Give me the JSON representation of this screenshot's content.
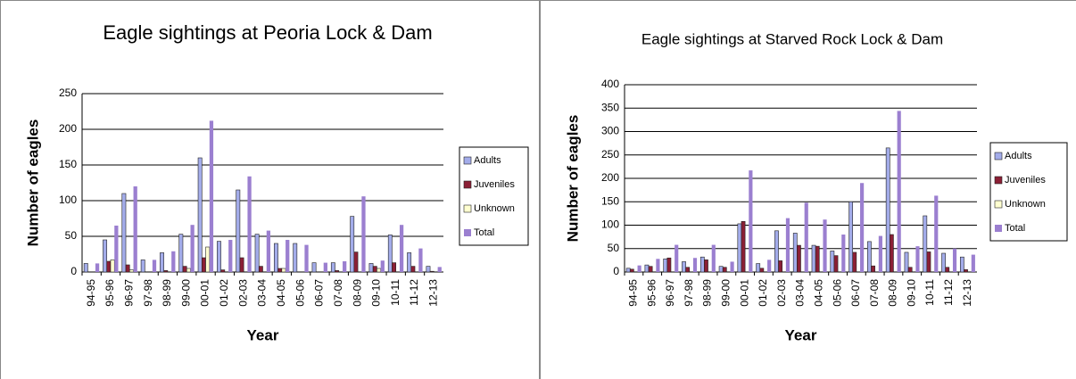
{
  "chart_data": [
    {
      "type": "bar",
      "title": "Eagle sightings at Peoria Lock & Dam",
      "x_label": "Year",
      "y_label": "Number of eagles",
      "categories": [
        "94-95",
        "95-96",
        "96-97",
        "97-98",
        "98-99",
        "99-00",
        "00-01",
        "01-02",
        "02-03",
        "03-04",
        "04-05",
        "05-06",
        "06-07",
        "07-08",
        "08-09",
        "09-10",
        "10-11",
        "11-12",
        "12-13"
      ],
      "series": [
        {
          "name": "Adults",
          "color": "#a3acea",
          "values": [
            12,
            45,
            110,
            17,
            27,
            53,
            160,
            43,
            115,
            53,
            40,
            40,
            13,
            13,
            78,
            12,
            52,
            27,
            8
          ]
        },
        {
          "name": "Juveniles",
          "color": "#8b1f35",
          "values": [
            0,
            15,
            10,
            0,
            2,
            8,
            20,
            3,
            20,
            8,
            5,
            0,
            0,
            2,
            28,
            8,
            13,
            8,
            1
          ]
        },
        {
          "name": "Unknown",
          "color": "#ffffd0",
          "values": [
            0,
            17,
            3,
            0,
            0,
            5,
            35,
            0,
            0,
            0,
            5,
            0,
            0,
            0,
            0,
            5,
            0,
            0,
            0
          ]
        },
        {
          "name": "Total",
          "color": "#9b7fd0",
          "values": [
            12,
            65,
            120,
            17,
            29,
            66,
            212,
            45,
            134,
            58,
            45,
            38,
            13,
            15,
            106,
            16,
            66,
            33,
            7
          ]
        }
      ],
      "ylim": [
        0,
        250
      ],
      "yticks": [
        0,
        50,
        100,
        150,
        200,
        250
      ],
      "grid": true,
      "legend": "right"
    },
    {
      "type": "bar",
      "title": "Eagle sightings at Starved Rock Lock & Dam",
      "x_label": "Year",
      "y_label": "Number of eagles",
      "categories": [
        "94-95",
        "95-96",
        "96-97",
        "97-98",
        "98-99",
        "99-00",
        "00-01",
        "01-02",
        "02-03",
        "03-04",
        "04-05",
        "05-06",
        "06-07",
        "07-08",
        "08-09",
        "09-10",
        "10-11",
        "11-12",
        "12-13"
      ],
      "series": [
        {
          "name": "Adults",
          "color": "#a3acea",
          "values": [
            8,
            15,
            28,
            22,
            32,
            12,
            103,
            18,
            88,
            83,
            57,
            45,
            150,
            65,
            265,
            42,
            120,
            40,
            32
          ]
        },
        {
          "name": "Juveniles",
          "color": "#8b1f35",
          "values": [
            6,
            12,
            30,
            10,
            26,
            10,
            108,
            8,
            24,
            57,
            55,
            35,
            42,
            13,
            80,
            10,
            43,
            10,
            5
          ]
        },
        {
          "name": "Unknown",
          "color": "#ffffd0",
          "values": [
            0,
            0,
            0,
            0,
            0,
            0,
            0,
            0,
            0,
            0,
            0,
            0,
            0,
            0,
            0,
            0,
            0,
            0,
            0
          ]
        },
        {
          "name": "Total",
          "color": "#9b7fd0",
          "values": [
            14,
            28,
            58,
            30,
            58,
            22,
            217,
            26,
            115,
            148,
            112,
            80,
            190,
            77,
            344,
            55,
            163,
            50,
            37
          ]
        }
      ],
      "ylim": [
        0,
        400
      ],
      "yticks": [
        0,
        50,
        100,
        150,
        200,
        250,
        300,
        350,
        400
      ],
      "grid": true,
      "legend": "right"
    }
  ]
}
